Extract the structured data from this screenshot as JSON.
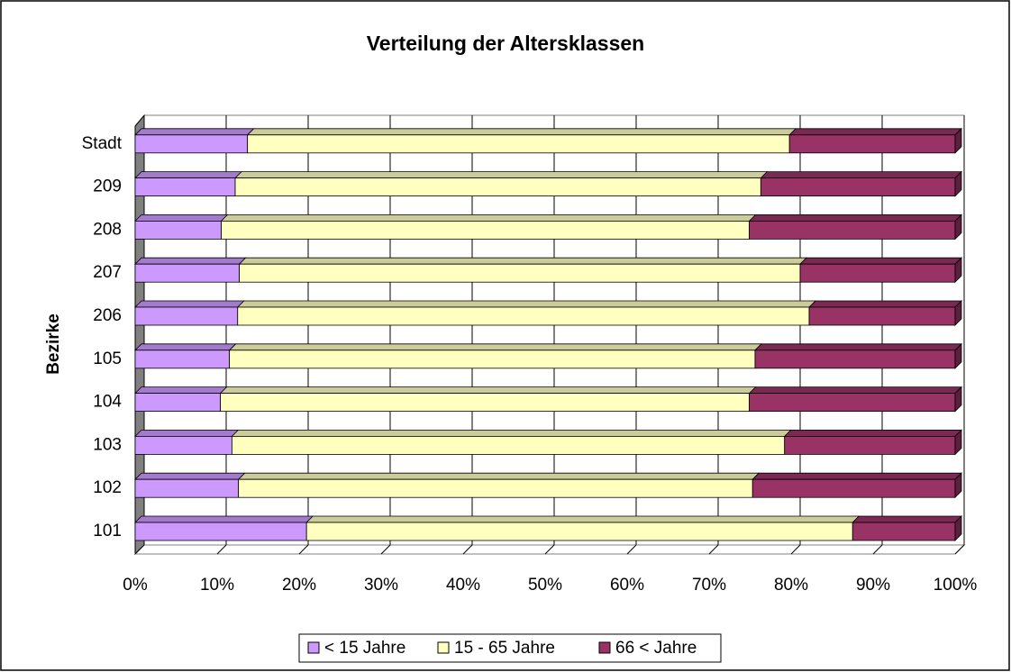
{
  "chart_data": {
    "type": "bar",
    "orientation": "horizontal",
    "stacked": "percent",
    "title": "Verteilung der Altersklassen",
    "y_label": "Bezirke",
    "categories": [
      "101",
      "102",
      "103",
      "104",
      "105",
      "206",
      "207",
      "208",
      "209",
      "Stadt"
    ],
    "series": [
      {
        "name": "< 15 Jahre",
        "color": "#cc99ff",
        "values": [
          20.9,
          12.6,
          11.8,
          10.4,
          11.5,
          12.5,
          12.7,
          10.5,
          12.2,
          13.7
        ]
      },
      {
        "name": "15 - 65 Jahre",
        "color": "#ffffc0",
        "values": [
          66.6,
          62.7,
          67.4,
          64.5,
          64.1,
          69.7,
          68.4,
          64.4,
          64.1,
          66.1
        ]
      },
      {
        "name": "66 < Jahre",
        "color": "#993366",
        "values": [
          12.5,
          24.7,
          20.8,
          25.1,
          24.4,
          17.8,
          18.9,
          25.1,
          23.7,
          20.2
        ]
      }
    ],
    "xlim": [
      0,
      100
    ],
    "xticks": [
      {
        "value": 0,
        "label": "0%"
      },
      {
        "value": 10,
        "label": "10%"
      },
      {
        "value": 20,
        "label": "20%"
      },
      {
        "value": 30,
        "label": "30%"
      },
      {
        "value": 40,
        "label": "40%"
      },
      {
        "value": 50,
        "label": "50%"
      },
      {
        "value": 60,
        "label": "60%"
      },
      {
        "value": 70,
        "label": "70%"
      },
      {
        "value": 80,
        "label": "80%"
      },
      {
        "value": 90,
        "label": "90%"
      },
      {
        "value": 100,
        "label": "100%"
      }
    ],
    "grid": true,
    "legend": "bottom"
  }
}
